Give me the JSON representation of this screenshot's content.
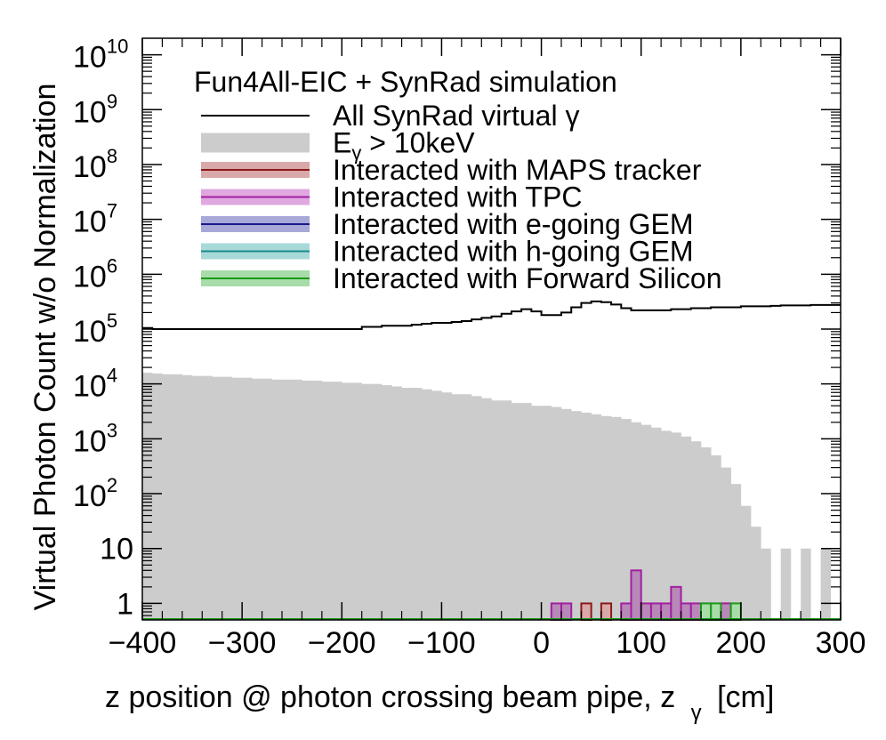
{
  "chart_data": {
    "type": "histogram",
    "title": "Fun4All-EIC + SynRad simulation",
    "xlabel": "z position @ photon crossing beam pipe, z",
    "xlabel_sub": "γ",
    "xlabel_unit": "[cm]",
    "ylabel": "Virtual Photon Count w/o Normalization",
    "xlim": [
      -400,
      300
    ],
    "ylim": [
      0.5,
      20000000000
    ],
    "yscale": "log",
    "grid": false,
    "legend_position": "top",
    "x_ticks": [
      "−400",
      "−300",
      "−200",
      "−100",
      "0",
      "100",
      "200",
      "300"
    ],
    "x_tick_values": [
      -400,
      -300,
      -200,
      -100,
      0,
      100,
      200,
      300
    ],
    "y_ticks": [
      {
        "v": 1,
        "base": "1",
        "exp": ""
      },
      {
        "v": 10,
        "base": "10",
        "exp": ""
      },
      {
        "v": 100,
        "base": "10",
        "exp": "2"
      },
      {
        "v": 1000,
        "base": "10",
        "exp": "3"
      },
      {
        "v": 10000,
        "base": "10",
        "exp": "4"
      },
      {
        "v": 100000,
        "base": "10",
        "exp": "5"
      },
      {
        "v": 1000000,
        "base": "10",
        "exp": "6"
      },
      {
        "v": 10000000,
        "base": "10",
        "exp": "7"
      },
      {
        "v": 100000000,
        "base": "10",
        "exp": "8"
      },
      {
        "v": 1000000000,
        "base": "10",
        "exp": "9"
      },
      {
        "v": 10000000000,
        "base": "10",
        "exp": "10"
      }
    ],
    "legend": [
      {
        "label": "All SynRad virtual  γ",
        "style": "line",
        "color": "#000000"
      },
      {
        "label": "E",
        "sub": "γ",
        "rest": " > 10keV",
        "style": "fill",
        "color": "#cccccc"
      },
      {
        "label": "Interacted with MAPS tracker",
        "style": "fill-line",
        "color": "#8b1a1a",
        "fill": "#d9a8a8"
      },
      {
        "label": "Interacted with TPC",
        "style": "fill-line",
        "color": "#a020a0",
        "fill": "#e0a8e0"
      },
      {
        "label": "Interacted with e-going GEM",
        "style": "fill-line",
        "color": "#1a1a8b",
        "fill": "#a8a8d9"
      },
      {
        "label": "Interacted with h-going GEM",
        "style": "fill-line",
        "color": "#1a8b8b",
        "fill": "#a8d9d9"
      },
      {
        "label": "Interacted with Forward Silicon",
        "style": "fill-line",
        "color": "#1a9b1a",
        "fill": "#a8dca8"
      }
    ],
    "bin_width": 10,
    "bin_start": -400,
    "series": [
      {
        "name": "All SynRad virtual  γ",
        "style": "line",
        "color": "#000000",
        "values": [
          105000,
          100000,
          100000,
          100000,
          100000,
          100000,
          100000,
          100000,
          100000,
          100000,
          100000,
          100000,
          100000,
          100000,
          100000,
          100000,
          100000,
          100000,
          100000,
          100000,
          100000,
          100000,
          110000,
          110000,
          115000,
          115000,
          115000,
          120000,
          125000,
          130000,
          130000,
          135000,
          140000,
          150000,
          160000,
          170000,
          190000,
          210000,
          230000,
          210000,
          180000,
          180000,
          200000,
          250000,
          300000,
          320000,
          310000,
          280000,
          240000,
          220000,
          220000,
          220000,
          220000,
          230000,
          230000,
          240000,
          240000,
          250000,
          250000,
          250000,
          260000,
          260000,
          260000,
          265000,
          270000,
          270000,
          270000,
          275000,
          275000,
          275000
        ]
      },
      {
        "name": "Eγ > 10keV",
        "style": "fill",
        "color": "#cccccc",
        "values": [
          16000,
          15500,
          15000,
          15000,
          14500,
          14000,
          14000,
          13500,
          13500,
          13000,
          13000,
          12500,
          12500,
          12000,
          12000,
          12000,
          11500,
          11500,
          11000,
          11000,
          10500,
          10500,
          10000,
          10000,
          9500,
          9000,
          8500,
          8500,
          8000,
          7500,
          7000,
          6500,
          6500,
          6000,
          5500,
          5000,
          5000,
          4500,
          4500,
          4000,
          4000,
          3800,
          3500,
          3200,
          3000,
          2800,
          2600,
          2500,
          2300,
          2000,
          1800,
          1600,
          1400,
          1300,
          1100,
          900,
          700,
          500,
          300,
          150,
          60,
          25,
          10,
          0,
          10,
          0,
          10,
          0,
          10,
          0
        ]
      },
      {
        "name": "Interacted with MAPS tracker",
        "style": "fill-line",
        "color": "#8b1a1a",
        "fill": "#d9a8a8",
        "bins": [
          {
            "x0": 40,
            "x1": 50,
            "v": 1
          },
          {
            "x0": 60,
            "x1": 70,
            "v": 1
          },
          {
            "x0": 180,
            "x1": 190,
            "v": 1
          }
        ]
      },
      {
        "name": "Interacted with TPC",
        "style": "fill-line",
        "color": "#a020a0",
        "fill": "#b888b8",
        "bins": [
          {
            "x0": 10,
            "x1": 20,
            "v": 1
          },
          {
            "x0": 20,
            "x1": 30,
            "v": 1
          },
          {
            "x0": 80,
            "x1": 90,
            "v": 1
          },
          {
            "x0": 90,
            "x1": 100,
            "v": 4
          },
          {
            "x0": 100,
            "x1": 110,
            "v": 1
          },
          {
            "x0": 110,
            "x1": 120,
            "v": 1
          },
          {
            "x0": 120,
            "x1": 130,
            "v": 1
          },
          {
            "x0": 130,
            "x1": 140,
            "v": 2
          },
          {
            "x0": 140,
            "x1": 150,
            "v": 1
          },
          {
            "x0": 150,
            "x1": 160,
            "v": 1
          },
          {
            "x0": 160,
            "x1": 170,
            "v": 1
          },
          {
            "x0": 170,
            "x1": 180,
            "v": 1
          },
          {
            "x0": 180,
            "x1": 190,
            "v": 1
          }
        ]
      },
      {
        "name": "Interacted with e-going GEM",
        "style": "fill-line",
        "color": "#1a1a8b",
        "fill": "#a8a8d9",
        "bins": []
      },
      {
        "name": "Interacted with h-going GEM",
        "style": "fill-line",
        "color": "#1a8b8b",
        "fill": "#a8d9d9",
        "bins": []
      },
      {
        "name": "Interacted with Forward Silicon",
        "style": "fill-line",
        "color": "#1a9b1a",
        "fill": "#a8dca8",
        "bins": [
          {
            "x0": 160,
            "x1": 170,
            "v": 1
          },
          {
            "x0": 170,
            "x1": 180,
            "v": 1
          },
          {
            "x0": 190,
            "x1": 200,
            "v": 1
          }
        ]
      }
    ]
  }
}
